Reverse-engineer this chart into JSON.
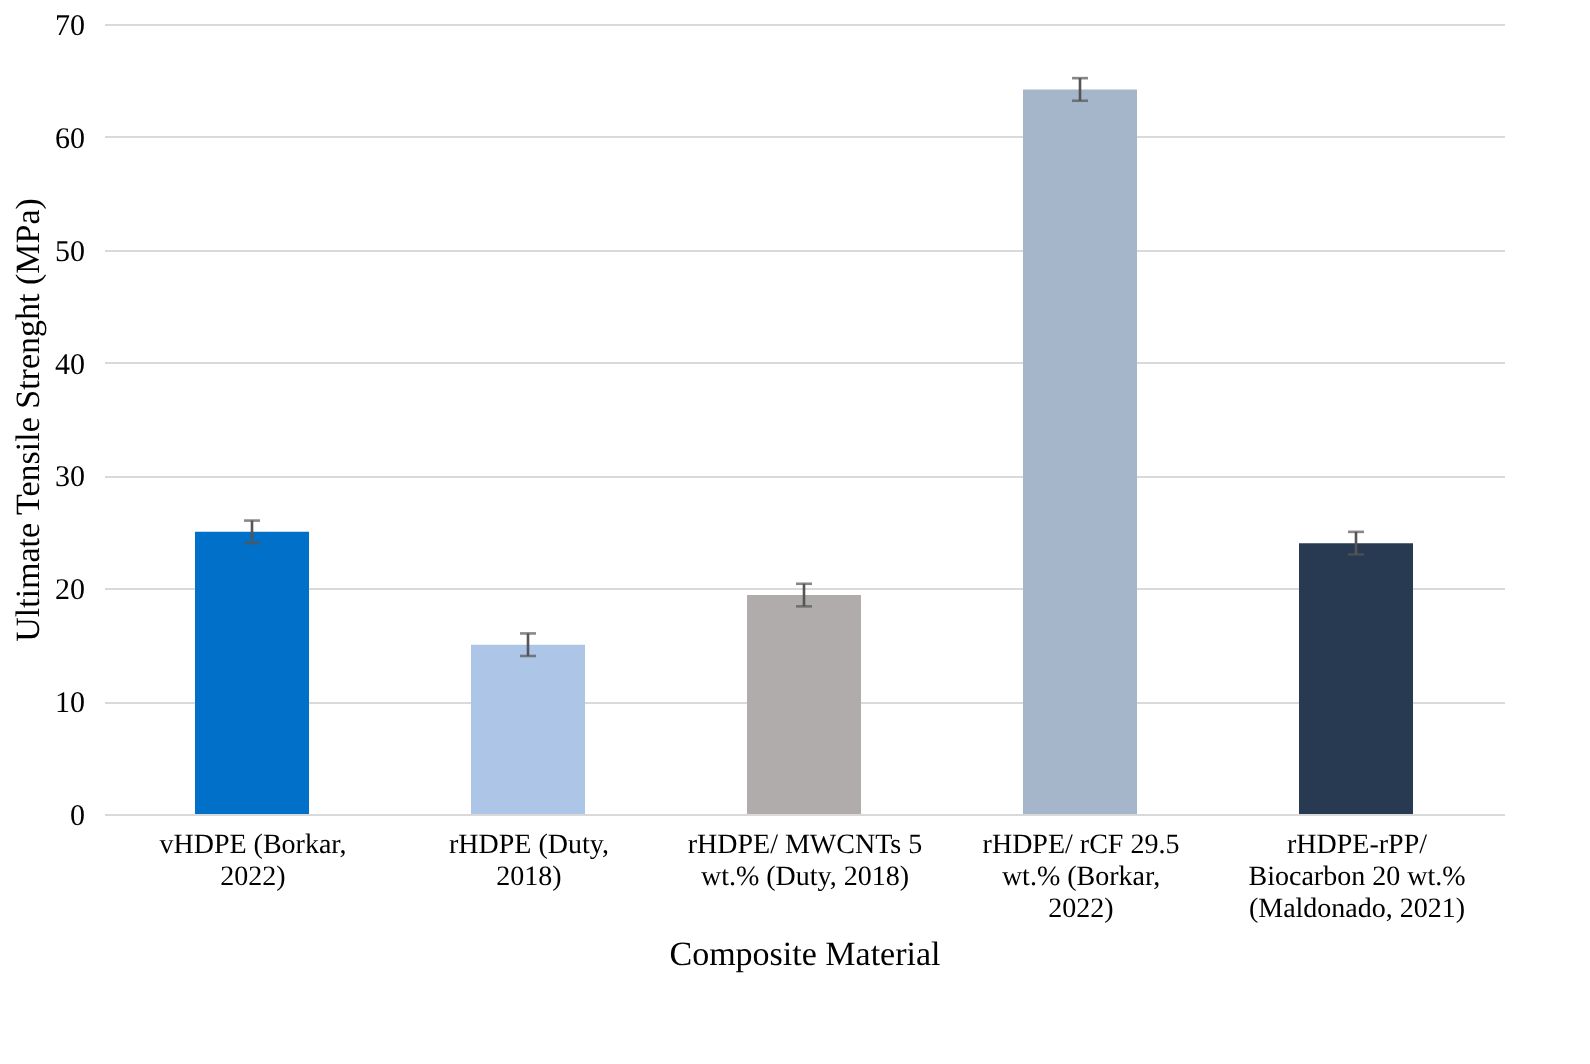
{
  "chart_data": {
    "type": "bar",
    "xlabel": "Composite Material",
    "ylabel": "Ultimate Tensile Strenght (MPa)",
    "categories": [
      "vHDPE (Borkar, 2022)",
      "rHDPE (Duty, 2018)",
      "rHDPE/ MWCNTs 5 wt.% (Duty, 2018)",
      "rHDPE/ rCF 29.5 wt.% (Borkar, 2022)",
      "rHDPE-rPP/ Biocarbon 20 wt.% (Maldonado, 2021)"
    ],
    "values": [
      25,
      15,
      19.4,
      64.2,
      24
    ],
    "errors": [
      1,
      1,
      1,
      1,
      1
    ],
    "colors": [
      "#0070c8",
      "#adc6e8",
      "#b0acab",
      "#a6b6ca",
      "#283a52"
    ],
    "ylim": [
      0,
      70
    ],
    "yticks": [
      0,
      10,
      20,
      30,
      40,
      50,
      60,
      70
    ],
    "grid": "y"
  }
}
